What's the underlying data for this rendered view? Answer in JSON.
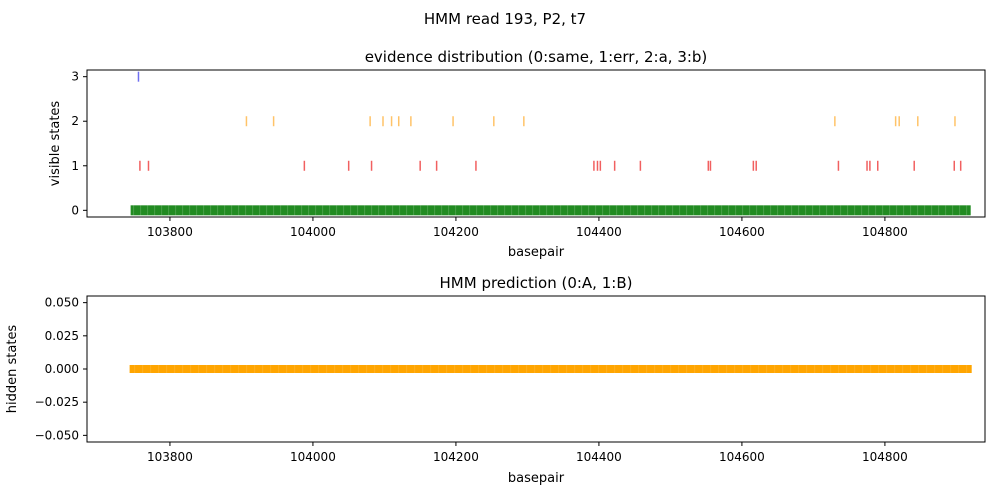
{
  "suptitle": "HMM read 193, P2, t7",
  "chart_data": [
    {
      "type": "scatter",
      "title": "evidence distribution (0:same, 1:err, 2:a, 3:b)",
      "xlabel": "basepair",
      "ylabel": "visible states",
      "xlim": [
        103684,
        104940
      ],
      "ylim": [
        -0.15,
        3.15
      ],
      "x_ticks": [
        103800,
        104000,
        104200,
        104400,
        104600,
        104800
      ],
      "x_tick_labels": [
        "103800",
        "104000",
        "104200",
        "104400",
        "104600",
        "104800"
      ],
      "y_ticks": [
        0,
        1,
        2,
        3
      ],
      "y_tick_labels": [
        "0",
        "1",
        "2",
        "3"
      ],
      "marker": "|",
      "grid": false,
      "series": [
        {
          "state": 0,
          "color": "#228B22",
          "x_range": [
            103745,
            104920
          ],
          "dense": true
        },
        {
          "state": 1,
          "color": "#EE4444",
          "x": [
            103758,
            103770,
            103988,
            104050,
            104082,
            104150,
            104173,
            104228,
            104393,
            104398,
            104402,
            104422,
            104458,
            104553,
            104556,
            104616,
            104620,
            104735,
            104775,
            104779,
            104790,
            104841,
            104897,
            104906
          ]
        },
        {
          "state": 2,
          "color": "#FFB84D",
          "x": [
            103907,
            103945,
            104080,
            104098,
            104110,
            104120,
            104137,
            104196,
            104253,
            104295,
            104730,
            104815,
            104820,
            104846,
            104898
          ]
        },
        {
          "state": 3,
          "color": "#5555EE",
          "x": [
            103756
          ]
        }
      ]
    },
    {
      "type": "scatter",
      "title": "HMM prediction (0:A, 1:B)",
      "xlabel": "basepair",
      "ylabel": "hidden states",
      "xlim": [
        103684,
        104940
      ],
      "ylim": [
        -0.055,
        0.055
      ],
      "x_ticks": [
        103800,
        104000,
        104200,
        104400,
        104600,
        104800
      ],
      "x_tick_labels": [
        "103800",
        "104000",
        "104200",
        "104400",
        "104600",
        "104800"
      ],
      "y_ticks": [
        -0.05,
        -0.025,
        0,
        0.025,
        0.05
      ],
      "y_tick_labels": [
        "−0.050",
        "−0.025",
        "0.000",
        "0.025",
        "0.050"
      ],
      "marker": "s",
      "grid": false,
      "series": [
        {
          "state": 0,
          "color": "#FFA500",
          "x_range": [
            103745,
            104920
          ],
          "dense": true
        }
      ]
    }
  ]
}
